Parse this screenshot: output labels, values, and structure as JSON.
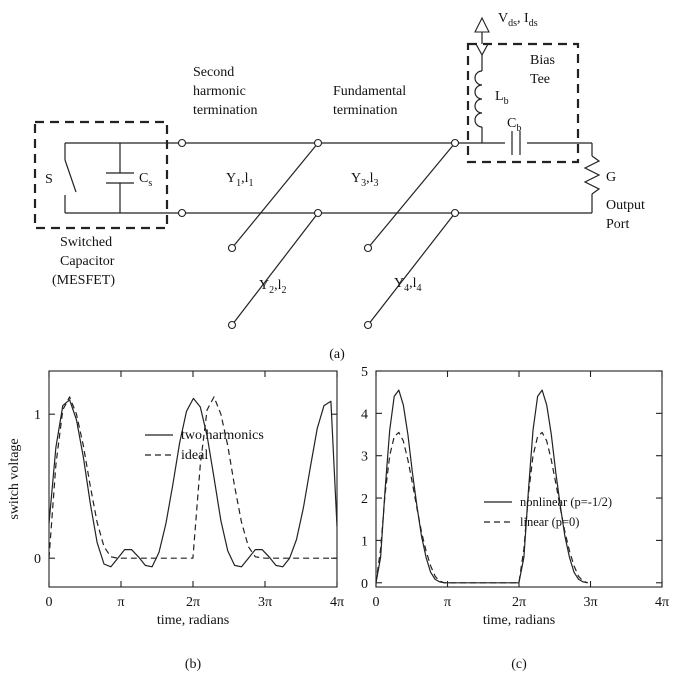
{
  "circuit": {
    "second_harmonic": [
      "Second",
      "harmonic",
      "termination"
    ],
    "fundamental": [
      "Fundamental",
      "termination"
    ],
    "bias_tee": [
      "Bias",
      "Tee"
    ],
    "vds_ids": "V_ds, I_ds",
    "switch_label": "S",
    "cs_label": "C_s",
    "lb_label": "L_b",
    "cb_label": "C_b",
    "g_label": "G",
    "output_port": [
      "Output",
      "Port"
    ],
    "switched_capacitor": [
      "Switched",
      "Capacitor",
      "(MESFET)"
    ],
    "y1": "Y_1,l_1",
    "y2": "Y_2,l_2",
    "y3": "Y_3,l_3",
    "y4": "Y_4,l_4",
    "caption": "(a)"
  },
  "chart_data": [
    {
      "type": "line",
      "caption": "(b)",
      "ylabel": "switch voltage",
      "xlabel": "time, radians",
      "xlim": [
        0,
        12.566
      ],
      "ylim": [
        -0.2,
        1.3
      ],
      "xticks": [
        "0",
        "π",
        "2π",
        "3π",
        "4π"
      ],
      "yticks": [
        "0",
        "1"
      ],
      "legend_position": "center-right",
      "series": [
        {
          "name": "two harmonics",
          "style": "solid",
          "x": [
            0,
            0.3,
            0.6,
            0.9,
            1.2,
            1.5,
            1.8,
            2.1,
            2.4,
            2.7,
            3.0,
            3.3,
            3.6,
            3.9,
            4.2,
            4.5,
            4.8,
            5.1,
            5.4,
            5.7,
            6.0,
            6.3,
            6.6,
            6.9,
            7.2,
            7.5,
            7.8,
            8.1,
            8.4,
            8.7,
            9.0,
            9.3,
            9.6,
            9.9,
            10.2,
            10.5,
            10.8,
            11.1,
            11.4,
            11.7,
            12.0,
            12.3,
            12.566
          ],
          "y": [
            0.24,
            0.77,
            1.06,
            1.1,
            0.96,
            0.7,
            0.38,
            0.11,
            -0.04,
            -0.06,
            0.0,
            0.06,
            0.06,
            0.01,
            -0.05,
            -0.06,
            0.04,
            0.24,
            0.51,
            0.8,
            1.02,
            1.11,
            1.05,
            0.85,
            0.56,
            0.26,
            0.05,
            -0.05,
            -0.06,
            0.0,
            0.06,
            0.06,
            0.01,
            -0.05,
            -0.06,
            0.0,
            0.13,
            0.35,
            0.63,
            0.9,
            1.06,
            1.09,
            0.22
          ]
        },
        {
          "name": "ideal",
          "style": "dashed",
          "x": [
            0,
            0.3,
            0.6,
            0.9,
            1.2,
            1.5,
            1.8,
            2.1,
            2.4,
            2.7,
            3.0,
            3.14,
            6.28,
            6.6,
            6.9,
            7.2,
            7.5,
            7.8,
            8.1,
            8.4,
            8.7,
            9.0,
            9.42,
            12.566
          ],
          "y": [
            0.0,
            0.65,
            1.03,
            1.12,
            1.0,
            0.78,
            0.5,
            0.25,
            0.08,
            0.01,
            0.0,
            0.0,
            0.0,
            0.65,
            1.03,
            1.12,
            1.0,
            0.78,
            0.5,
            0.25,
            0.08,
            0.01,
            0.0,
            0.0
          ]
        }
      ]
    },
    {
      "type": "line",
      "caption": "(c)",
      "xlabel": "time, radians",
      "xlim": [
        0,
        12.566
      ],
      "ylim": [
        -0.1,
        5
      ],
      "xticks": [
        "0",
        "π",
        "2π",
        "3π",
        "4π"
      ],
      "yticks": [
        "0",
        "1",
        "2",
        "3",
        "4",
        "5"
      ],
      "legend_position": "bottom-right",
      "series": [
        {
          "name": "nonlinear (p=-1/2)",
          "style": "solid",
          "x": [
            0,
            0.2,
            0.4,
            0.6,
            0.8,
            1.0,
            1.2,
            1.4,
            1.6,
            1.8,
            2.0,
            2.2,
            2.4,
            2.6,
            2.8,
            3.0,
            3.14,
            6.28,
            6.5,
            6.7,
            6.9,
            7.1,
            7.3,
            7.5,
            7.7,
            7.9,
            8.1,
            8.3,
            8.5,
            8.7,
            8.9,
            9.1,
            9.3
          ],
          "y": [
            0.0,
            0.6,
            2.2,
            3.6,
            4.4,
            4.55,
            4.2,
            3.5,
            2.6,
            1.8,
            1.1,
            0.6,
            0.25,
            0.08,
            0.02,
            0.0,
            0.0,
            0.0,
            0.6,
            2.2,
            3.6,
            4.4,
            4.55,
            4.2,
            3.5,
            2.6,
            1.8,
            1.1,
            0.6,
            0.25,
            0.08,
            0.02,
            0.0
          ]
        },
        {
          "name": "linear (p=0)",
          "style": "dashed",
          "x": [
            0,
            0.2,
            0.4,
            0.6,
            0.8,
            1.0,
            1.2,
            1.4,
            1.6,
            1.8,
            2.0,
            2.2,
            2.4,
            2.6,
            2.8,
            3.0,
            3.14,
            6.28,
            6.5,
            6.7,
            6.9,
            7.1,
            7.3,
            7.5,
            7.7,
            7.9,
            8.1,
            8.3,
            8.5,
            8.7,
            8.9,
            9.1,
            9.3
          ],
          "y": [
            0.0,
            0.8,
            2.1,
            3.0,
            3.45,
            3.55,
            3.35,
            2.9,
            2.35,
            1.75,
            1.2,
            0.75,
            0.4,
            0.15,
            0.04,
            0.0,
            0.0,
            0.0,
            0.8,
            2.1,
            3.0,
            3.45,
            3.55,
            3.35,
            2.9,
            2.35,
            1.75,
            1.2,
            0.75,
            0.4,
            0.15,
            0.04,
            0.0
          ]
        }
      ]
    }
  ]
}
